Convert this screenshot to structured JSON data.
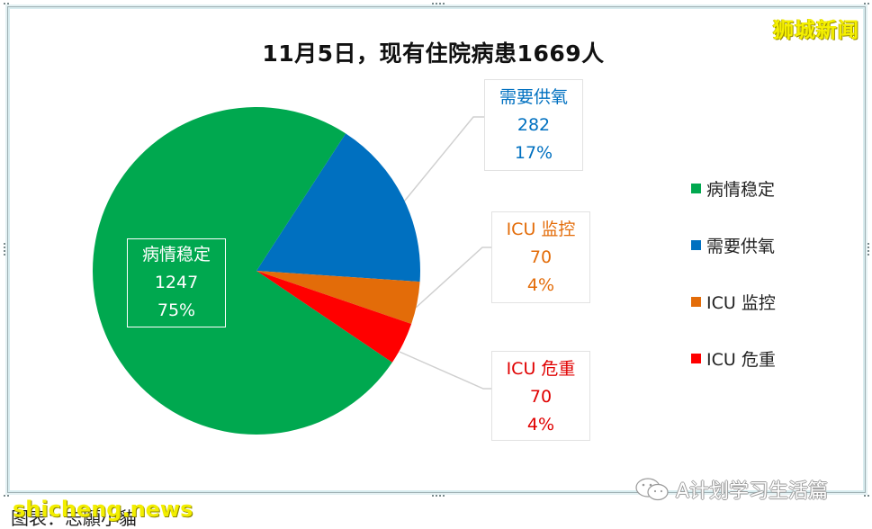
{
  "title": "11月5日，现有住院病患1669人",
  "watermarks": {
    "top_right": "狮城新闻",
    "bottom_left": "shicheng.news",
    "bottom_right": "A计划学习生活篇"
  },
  "caption": "图表：志願小貓",
  "colors": {
    "stable": "#00a84f",
    "oxygen": "#0070c0",
    "icu_monitor": "#e36c09",
    "icu_critical": "#ff0000"
  },
  "labels": {
    "stable": {
      "name": "病情稳定",
      "value": "1247",
      "pct": "75%"
    },
    "oxygen": {
      "name": "需要供氧",
      "value": "282",
      "pct": "17%"
    },
    "icu_monitor": {
      "name": "ICU 监控",
      "value": "70",
      "pct": "4%"
    },
    "icu_critical": {
      "name": "ICU 危重",
      "value": "70",
      "pct": "4%"
    }
  },
  "legend": [
    {
      "label": "病情稳定",
      "color": "#00a84f"
    },
    {
      "label": "需要供氧",
      "color": "#0070c0"
    },
    {
      "label": "ICU 监控",
      "color": "#e36c09"
    },
    {
      "label": "ICU 危重",
      "color": "#ff0000"
    }
  ],
  "chart_data": {
    "type": "pie",
    "title": "11月5日，现有住院病患1669人",
    "categories": [
      "病情稳定",
      "需要供氧",
      "ICU 监控",
      "ICU 危重"
    ],
    "values": [
      1247,
      282,
      70,
      70
    ],
    "percentages": [
      75,
      17,
      4,
      4
    ],
    "total": 1669,
    "colors": [
      "#00a84f",
      "#0070c0",
      "#e36c09",
      "#ff0000"
    ],
    "legend_position": "right",
    "data_labels": [
      "category",
      "value",
      "percent"
    ]
  }
}
